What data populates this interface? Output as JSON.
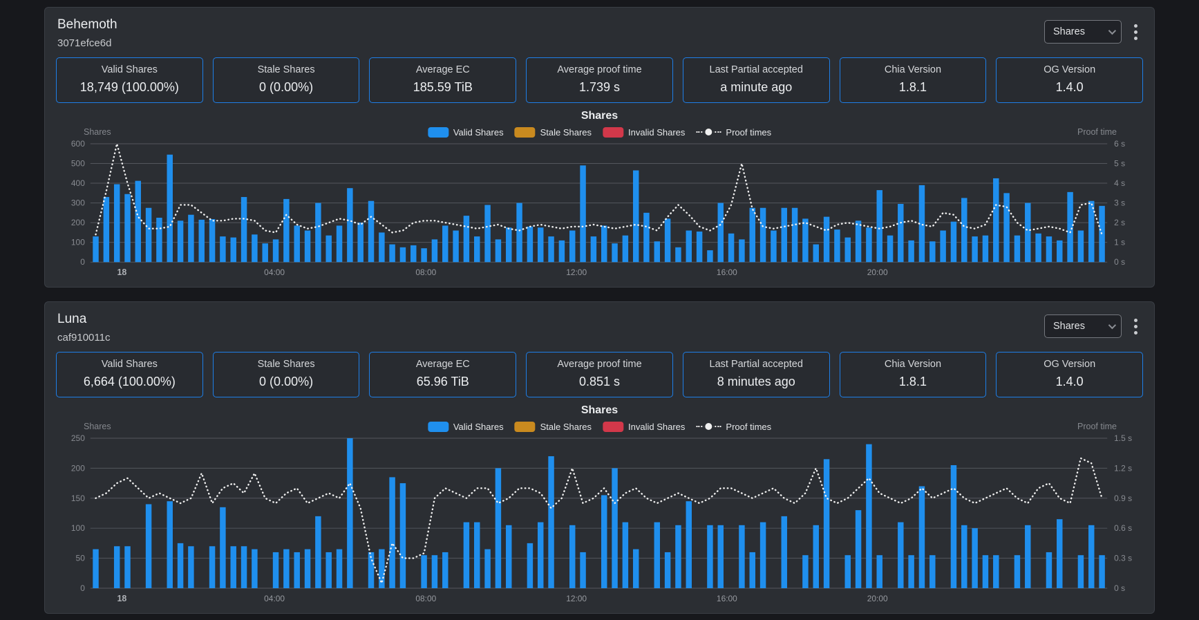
{
  "colors": {
    "valid": "#1f8fee",
    "stale": "#c98a1f",
    "invalid": "#d2384a",
    "proof_line": "#f0f0f0",
    "stat_border": "#1e7fe8",
    "card_bg": "#2b2e33",
    "page_bg": "#17181c"
  },
  "legend": {
    "items": [
      {
        "label": "Valid Shares",
        "color": "#1f8fee"
      },
      {
        "label": "Stale Shares",
        "color": "#c98a1f"
      },
      {
        "label": "Invalid Shares",
        "color": "#d2384a"
      },
      {
        "label": "Proof times",
        "color": "#f0f0f0"
      }
    ]
  },
  "cards": [
    {
      "title": "Behemoth",
      "subtitle": "3071efce6d",
      "dropdown_value": "Shares",
      "chart_title": "Shares",
      "stats": [
        {
          "label": "Valid Shares",
          "value": "18,749 (100.00%)"
        },
        {
          "label": "Stale Shares",
          "value": "0 (0.00%)"
        },
        {
          "label": "Average EC",
          "value": "185.59 TiB"
        },
        {
          "label": "Average proof time",
          "value": "1.739 s"
        },
        {
          "label": "Last Partial accepted",
          "value": "a minute ago"
        },
        {
          "label": "Chia Version",
          "value": "1.8.1"
        },
        {
          "label": "OG Version",
          "value": "1.4.0"
        }
      ]
    },
    {
      "title": "Luna",
      "subtitle": "caf910011c",
      "dropdown_value": "Shares",
      "chart_title": "Shares",
      "stats": [
        {
          "label": "Valid Shares",
          "value": "6,664 (100.00%)"
        },
        {
          "label": "Stale Shares",
          "value": "0 (0.00%)"
        },
        {
          "label": "Average EC",
          "value": "65.96 TiB"
        },
        {
          "label": "Average proof time",
          "value": "0.851 s"
        },
        {
          "label": "Last Partial accepted",
          "value": "8 minutes ago"
        },
        {
          "label": "Chia Version",
          "value": "1.8.1"
        },
        {
          "label": "OG Version",
          "value": "1.4.0"
        }
      ]
    }
  ],
  "chart_data": [
    {
      "type": "bar",
      "title": "Shares",
      "left_axis": {
        "label": "Shares",
        "max": 600,
        "ticks": [
          0,
          100,
          200,
          300,
          400,
          500,
          600
        ]
      },
      "right_axis": {
        "label": "Proof time",
        "max": 6,
        "ticks": [
          "0 s",
          "1 s",
          "2 s",
          "3 s",
          "4 s",
          "5 s",
          "6 s"
        ]
      },
      "x_ticks": [
        {
          "label": "18",
          "pos": 0.031
        },
        {
          "label": "04:00",
          "pos": 0.181
        },
        {
          "label": "08:00",
          "pos": 0.33
        },
        {
          "label": "12:00",
          "pos": 0.478
        },
        {
          "label": "16:00",
          "pos": 0.626
        },
        {
          "label": "20:00",
          "pos": 0.774
        }
      ],
      "series": [
        {
          "name": "Valid Shares",
          "type": "bar",
          "axis": "left",
          "color": "#1f8fee",
          "values": [
            130,
            330,
            395,
            345,
            412,
            275,
            225,
            545,
            210,
            240,
            215,
            218,
            130,
            125,
            330,
            140,
            95,
            115,
            320,
            185,
            160,
            300,
            135,
            185,
            375,
            200,
            310,
            150,
            90,
            75,
            85,
            70,
            115,
            185,
            160,
            235,
            130,
            290,
            115,
            175,
            300,
            180,
            175,
            130,
            110,
            160,
            490,
            130,
            185,
            95,
            135,
            465,
            250,
            105,
            220,
            75,
            160,
            155,
            60,
            300,
            145,
            115,
            275,
            275,
            160,
            275,
            275,
            220,
            90,
            230,
            165,
            125,
            210,
            175,
            365,
            135,
            295,
            110,
            390,
            105,
            160,
            205,
            325,
            130,
            135,
            425,
            350,
            135,
            300,
            145,
            130,
            110,
            355,
            160,
            310,
            285
          ]
        },
        {
          "name": "Stale Shares",
          "type": "bar",
          "axis": "left",
          "color": "#c98a1f",
          "values": []
        },
        {
          "name": "Invalid Shares",
          "type": "bar",
          "axis": "left",
          "color": "#d2384a",
          "values": []
        },
        {
          "name": "Proof times",
          "type": "line",
          "axis": "right",
          "color": "#f0f0f0",
          "values": [
            1.4,
            3.6,
            6.0,
            4.0,
            2.3,
            1.7,
            1.7,
            1.8,
            2.9,
            2.9,
            2.5,
            2.1,
            2.1,
            2.2,
            2.2,
            2.1,
            1.6,
            1.5,
            2.4,
            1.9,
            1.7,
            1.8,
            2.0,
            2.2,
            2.1,
            1.9,
            2.3,
            1.9,
            1.5,
            1.6,
            2.0,
            2.1,
            2.1,
            2.0,
            1.9,
            1.8,
            1.7,
            1.8,
            1.9,
            1.7,
            1.6,
            1.8,
            1.9,
            1.8,
            1.7,
            1.8,
            1.8,
            1.9,
            1.8,
            1.7,
            1.8,
            1.9,
            1.8,
            1.6,
            2.3,
            2.9,
            2.4,
            1.8,
            1.6,
            1.9,
            2.9,
            5.0,
            2.7,
            1.8,
            1.7,
            1.8,
            1.9,
            2.0,
            1.8,
            1.6,
            1.9,
            2.0,
            1.9,
            1.8,
            1.7,
            1.8,
            2.0,
            2.1,
            1.9,
            1.8,
            2.5,
            2.4,
            1.8,
            1.7,
            1.9,
            2.9,
            2.8,
            2.0,
            1.6,
            1.7,
            1.8,
            1.7,
            1.5,
            2.9,
            3.0,
            1.4
          ]
        }
      ]
    },
    {
      "type": "bar",
      "title": "Shares",
      "left_axis": {
        "label": "Shares",
        "max": 250,
        "ticks": [
          0,
          50,
          100,
          150,
          200,
          250
        ]
      },
      "right_axis": {
        "label": "Proof time",
        "max": 1.5,
        "ticks": [
          "0 s",
          "0.3 s",
          "0.6 s",
          "0.9 s",
          "1.2 s",
          "1.5 s"
        ]
      },
      "x_ticks": [
        {
          "label": "18",
          "pos": 0.031
        },
        {
          "label": "04:00",
          "pos": 0.181
        },
        {
          "label": "08:00",
          "pos": 0.33
        },
        {
          "label": "12:00",
          "pos": 0.478
        },
        {
          "label": "16:00",
          "pos": 0.626
        },
        {
          "label": "20:00",
          "pos": 0.774
        }
      ],
      "series": [
        {
          "name": "Valid Shares",
          "type": "bar",
          "axis": "left",
          "color": "#1f8fee",
          "values": [
            65,
            0,
            70,
            70,
            0,
            140,
            0,
            145,
            75,
            70,
            0,
            70,
            135,
            70,
            70,
            65,
            0,
            60,
            65,
            60,
            65,
            120,
            60,
            65,
            250,
            0,
            60,
            65,
            185,
            175,
            0,
            55,
            55,
            60,
            0,
            110,
            110,
            65,
            200,
            105,
            0,
            75,
            110,
            220,
            0,
            105,
            60,
            0,
            155,
            200,
            110,
            65,
            0,
            110,
            60,
            105,
            145,
            0,
            105,
            105,
            0,
            105,
            60,
            110,
            0,
            120,
            0,
            55,
            105,
            215,
            0,
            55,
            130,
            240,
            55,
            0,
            110,
            55,
            170,
            55,
            0,
            205,
            105,
            100,
            55,
            55,
            0,
            55,
            105,
            0,
            60,
            115,
            0,
            55,
            105,
            55
          ]
        },
        {
          "name": "Stale Shares",
          "type": "bar",
          "axis": "left",
          "color": "#c98a1f",
          "values": []
        },
        {
          "name": "Invalid Shares",
          "type": "bar",
          "axis": "left",
          "color": "#d2384a",
          "values": []
        },
        {
          "name": "Proof times",
          "type": "line",
          "axis": "right",
          "color": "#f0f0f0",
          "values": [
            0.9,
            0.95,
            1.05,
            1.1,
            1.0,
            0.9,
            0.95,
            0.9,
            0.85,
            0.9,
            1.15,
            0.85,
            1.0,
            1.05,
            0.95,
            1.15,
            0.9,
            0.85,
            0.95,
            1.0,
            0.85,
            0.9,
            0.95,
            0.9,
            1.05,
            0.8,
            0.3,
            0.05,
            0.45,
            0.3,
            0.3,
            0.35,
            0.9,
            1.0,
            0.95,
            0.9,
            1.0,
            1.0,
            0.85,
            0.9,
            1.0,
            1.0,
            0.95,
            0.8,
            0.9,
            1.2,
            0.85,
            0.9,
            1.0,
            0.85,
            0.95,
            1.0,
            0.9,
            0.85,
            0.9,
            0.95,
            0.9,
            0.85,
            0.9,
            1.0,
            1.0,
            0.95,
            0.9,
            0.95,
            1.0,
            0.9,
            0.85,
            0.95,
            1.2,
            0.9,
            0.85,
            0.9,
            1.0,
            1.1,
            0.95,
            0.9,
            0.85,
            0.9,
            1.0,
            0.9,
            0.95,
            1.0,
            0.9,
            0.85,
            0.9,
            0.95,
            1.0,
            0.9,
            0.85,
            1.0,
            1.05,
            0.9,
            0.85,
            1.3,
            1.25,
            0.9
          ]
        }
      ]
    }
  ]
}
